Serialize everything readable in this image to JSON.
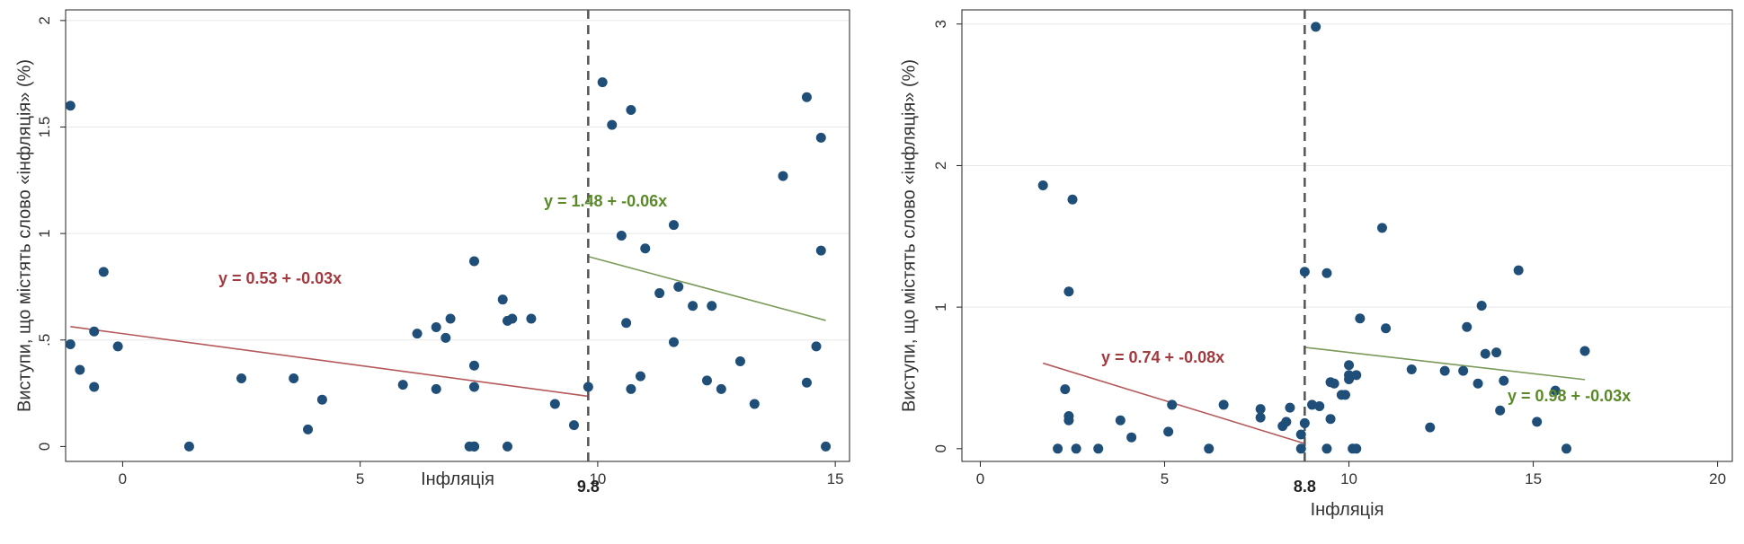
{
  "chart_data": [
    {
      "type": "scatter",
      "xlabel": "Інфляція",
      "ylabel": "Виступи, що містять слово «інфляція» (%)",
      "xlim": [
        -1.2,
        15.3
      ],
      "ylim": [
        -0.07,
        2.05
      ],
      "xticks": [
        "0",
        "5",
        "10",
        "15"
      ],
      "yticks": [
        "0",
        ".5",
        "1",
        "1.5",
        "2"
      ],
      "xtick_values": [
        0,
        5,
        10,
        15
      ],
      "ytick_values": [
        0,
        0.5,
        1,
        1.5,
        2
      ],
      "grid": true,
      "threshold": {
        "value": 9.8,
        "label": "9.8"
      },
      "points": {
        "x": [
          -1.1,
          -1.1,
          -0.9,
          -0.6,
          -0.6,
          -0.4,
          -0.1,
          1.4,
          2.5,
          3.6,
          3.9,
          4.2,
          5.9,
          6.2,
          6.6,
          6.6,
          6.8,
          6.9,
          7.3,
          7.4,
          7.4,
          7.4,
          7.4,
          7.4,
          7.4,
          8.0,
          8.1,
          8.1,
          8.2,
          8.6,
          9.1,
          9.5,
          9.8,
          10.1,
          10.3,
          10.5,
          10.6,
          10.7,
          10.7,
          10.9,
          11.0,
          11.3,
          11.6,
          11.6,
          11.7,
          12.0,
          12.3,
          12.4,
          12.6,
          13.0,
          13.3,
          13.9,
          14.4,
          14.4,
          14.6,
          14.7,
          14.7,
          14.8
        ],
        "y": [
          1.6,
          0.48,
          0.36,
          0.54,
          0.28,
          0.82,
          0.47,
          0.0,
          0.32,
          0.32,
          0.08,
          0.22,
          0.29,
          0.53,
          0.56,
          0.27,
          0.51,
          0.6,
          0.0,
          0.87,
          0.38,
          0.28,
          0.0,
          0.0,
          0.0,
          0.69,
          0.59,
          0.0,
          0.6,
          0.6,
          0.2,
          0.1,
          0.28,
          1.71,
          1.51,
          0.99,
          0.58,
          1.58,
          0.27,
          0.33,
          0.93,
          0.72,
          0.49,
          1.04,
          0.75,
          0.66,
          0.31,
          0.66,
          0.27,
          0.4,
          0.2,
          1.27,
          1.64,
          0.3,
          0.47,
          1.45,
          0.92,
          0.0
        ]
      },
      "fits": [
        {
          "x_range": [
            -1.1,
            9.8
          ],
          "intercept": 0.53,
          "slope": -0.03,
          "label": "y = 0.53 + -0.03x",
          "color": "#b5585a"
        },
        {
          "x_range": [
            9.8,
            14.8
          ],
          "intercept": 1.48,
          "slope": -0.06,
          "label": "y = 1.48 + -0.06x",
          "color": "#7a9a5a"
        }
      ],
      "colors": {
        "points": "#1f4e79",
        "threshold": "#555555",
        "label_left": "#a33a3f",
        "label_right": "#5a8a28"
      }
    },
    {
      "type": "scatter",
      "xlabel": "Інфляція",
      "ylabel": "Виступи, що містять слово «інфляція» (%)",
      "xlim": [
        -0.5,
        20.4
      ],
      "ylim": [
        -0.09,
        3.1
      ],
      "xticks": [
        "0",
        "5",
        "10",
        "15",
        "20"
      ],
      "yticks": [
        "0",
        "1",
        "2",
        "3"
      ],
      "xtick_values": [
        0,
        5,
        10,
        15,
        20
      ],
      "ytick_values": [
        0,
        1,
        2,
        3
      ],
      "grid": true,
      "threshold": {
        "value": 8.8,
        "label": "8.8"
      },
      "points": {
        "x": [
          1.7,
          2.1,
          2.3,
          2.4,
          2.4,
          2.4,
          2.5,
          2.6,
          3.2,
          3.8,
          4.1,
          5.1,
          5.2,
          6.2,
          6.6,
          7.6,
          7.6,
          8.2,
          8.3,
          8.4,
          8.7,
          8.7,
          8.8,
          8.8,
          9.0,
          9.1,
          9.2,
          9.4,
          9.4,
          9.5,
          9.5,
          9.6,
          9.8,
          9.9,
          10.0,
          10.0,
          10.0,
          10.1,
          10.2,
          10.2,
          10.3,
          10.9,
          11.0,
          11.7,
          12.2,
          12.6,
          13.1,
          13.2,
          13.5,
          13.6,
          13.7,
          14.0,
          14.1,
          14.2,
          14.6,
          15.1,
          15.6,
          15.9,
          16.4
        ],
        "y": [
          1.86,
          0.0,
          0.42,
          1.11,
          0.23,
          0.2,
          1.76,
          0.0,
          0.0,
          0.2,
          0.08,
          0.12,
          0.31,
          0.0,
          0.31,
          0.28,
          0.22,
          0.16,
          0.19,
          0.29,
          0.1,
          0.0,
          0.18,
          1.25,
          0.31,
          2.98,
          0.3,
          1.24,
          0.0,
          0.21,
          0.47,
          0.46,
          0.38,
          0.38,
          0.59,
          0.52,
          0.49,
          0.0,
          0.52,
          0.0,
          0.92,
          1.56,
          0.85,
          0.56,
          0.15,
          0.55,
          0.55,
          0.86,
          0.46,
          1.01,
          0.67,
          0.68,
          0.27,
          0.48,
          1.26,
          0.19,
          0.41,
          0.0,
          0.69
        ]
      },
      "fits": [
        {
          "x_range": [
            1.7,
            8.8
          ],
          "intercept": 0.74,
          "slope": -0.08,
          "label": "y = 0.74 + -0.08x",
          "color": "#b5585a"
        },
        {
          "x_range": [
            8.8,
            16.4
          ],
          "intercept": 0.98,
          "slope": -0.03,
          "label": "y = 0.98 + -0.03x",
          "color": "#7a9a5a"
        }
      ],
      "colors": {
        "points": "#1f4e79",
        "threshold": "#555555",
        "label_left": "#a33a3f",
        "label_right": "#5a8a28"
      }
    }
  ]
}
